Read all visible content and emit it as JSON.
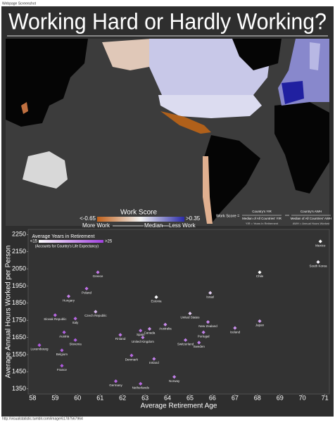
{
  "header": "Webpage Screenshot",
  "title": "Working Hard or Hardly Working?",
  "map_legend": {
    "title": "Work Score",
    "low": "<-0.65",
    "high": ">0.35",
    "more": "More Work",
    "median": "Median",
    "less": "Less Work"
  },
  "formula": {
    "lhs": "Work Score =",
    "num1": "Country's YIR",
    "den1": "Median of All Countries' YIR",
    "num2": "Country's AWH",
    "den2": "Median of All Countries' AWH",
    "note1": "YIR = Years In Retirement",
    "note2": "AWH = Annual Hours Worked"
  },
  "chart_data": {
    "type": "scatter",
    "xlabel": "Average Retirement Age",
    "ylabel": "Average Annual Hours Worked per Person",
    "legend": {
      "title": "Average Years in Retirement",
      "low": "<15",
      "high": ">25",
      "note": "(Accounts for Country's Life Expectancy)"
    },
    "labels": [
      "Mexico",
      "South Korea",
      "Chile",
      "Greece",
      "Poland",
      "Hungary",
      "Israel",
      "Estonia",
      "Czech Republic",
      "Slovak Republic",
      "Italy",
      "United States",
      "Canada",
      "Spain",
      "Australia",
      "New Zealand",
      "Japan",
      "Austria",
      "Portugal",
      "Iceland",
      "Finland",
      "United Kingdom",
      "Luxembourg",
      "Slovenia",
      "Switzerland",
      "Sweden",
      "Belgium",
      "Denmark",
      "Ireland",
      "France",
      "Norway",
      "Germany",
      "Netherlands"
    ],
    "x": [
      70.8,
      70.7,
      68.1,
      60.9,
      60.4,
      59.6,
      65.9,
      63.5,
      60.8,
      59.0,
      59.9,
      65.0,
      63.2,
      62.8,
      63.9,
      65.8,
      68.1,
      59.4,
      65.6,
      67.0,
      61.9,
      62.9,
      58.3,
      59.9,
      64.8,
      65.4,
      59.3,
      62.4,
      63.4,
      59.3,
      64.3,
      61.7,
      62.8
    ],
    "values": [
      2210,
      2090,
      2030,
      2030,
      1935,
      1890,
      1910,
      1885,
      1800,
      1780,
      1760,
      1790,
      1700,
      1690,
      1725,
      1740,
      1745,
      1680,
      1680,
      1705,
      1665,
      1650,
      1605,
      1635,
      1635,
      1620,
      1575,
      1545,
      1525,
      1485,
      1420,
      1395,
      1380
    ],
    "colors": [
      "#ffffff",
      "#f6f2fa",
      "#ffffff",
      "#c678ea",
      "#c070e8",
      "#c680ea",
      "#e4d0f4",
      "#fbfbfd",
      "#d8b8ee",
      "#b868e2",
      "#b868e2",
      "#e0c8f0",
      "#c890ea",
      "#bb70e4",
      "#c88aea",
      "#c888ea",
      "#d0a0ee",
      "#b060e0",
      "#c080e8",
      "#c890ea",
      "#c078e8",
      "#c080e8",
      "#b058e0",
      "#b060e0",
      "#c080e8",
      "#c080e8",
      "#b060e0",
      "#b868e2",
      "#c080e8",
      "#b058e0",
      "#c080e8",
      "#b868e2",
      "#b868e2"
    ],
    "xlim": [
      57.8,
      71.2
    ],
    "ylim": [
      1320,
      2280
    ],
    "xticks": [
      58,
      59,
      60,
      61,
      62,
      63,
      64,
      65,
      66,
      67,
      68,
      69,
      70,
      71
    ],
    "yticks": [
      1350,
      1450,
      1550,
      1650,
      1750,
      1850,
      1950,
      2050,
      2150,
      2250
    ]
  },
  "footer": "http://visualstatistic.tumblr.com/image/61787567964"
}
